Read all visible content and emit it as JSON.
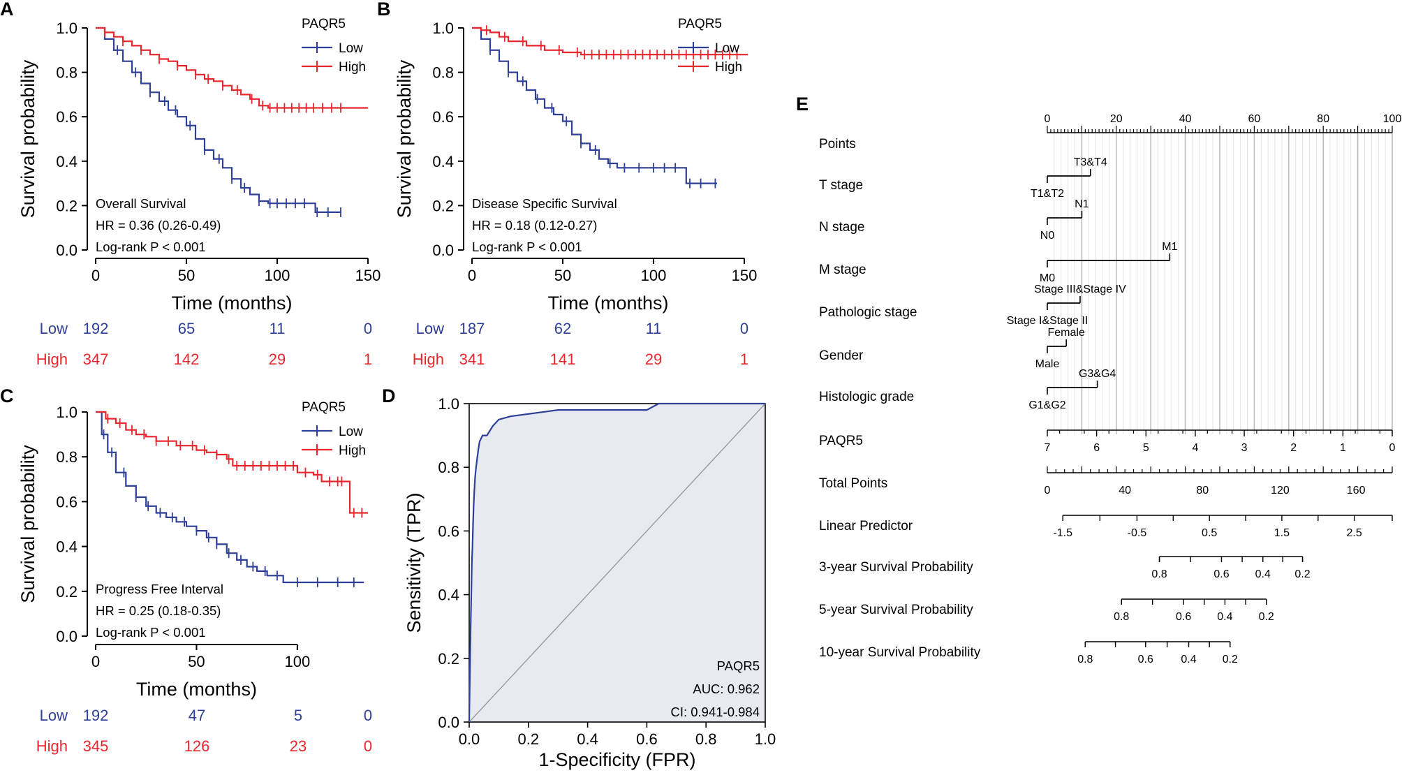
{
  "colors": {
    "low": "#2e3f97",
    "high": "#e8262d",
    "axis": "#000000",
    "roc": "#2e3f97",
    "fill": "#e8eaf2",
    "grid": "#c8c8c8"
  },
  "chart_data": [
    {
      "panel": "A",
      "type": "line",
      "subtype": "kaplan-meier",
      "legend_title": "PAQR5",
      "xlabel": "Time (months)",
      "ylabel": "Survival probability",
      "xlim": [
        0,
        150
      ],
      "ylim": [
        0,
        1
      ],
      "xticks": [
        "0",
        "50",
        "100",
        "150"
      ],
      "yticks": [
        "0.0",
        "0.2",
        "0.4",
        "0.6",
        "0.8",
        "1.0"
      ],
      "annotation": [
        "Overall Survival",
        "HR = 0.36 (0.26-0.49)",
        "Log-rank P < 0.001"
      ],
      "series": [
        {
          "name": "Low",
          "color": "low",
          "x": [
            0,
            5,
            10,
            15,
            20,
            25,
            30,
            35,
            40,
            45,
            50,
            55,
            60,
            65,
            70,
            75,
            80,
            85,
            90,
            95,
            100,
            105,
            110,
            115,
            118,
            121,
            125,
            135
          ],
          "y": [
            1.0,
            0.95,
            0.9,
            0.85,
            0.8,
            0.75,
            0.71,
            0.67,
            0.63,
            0.6,
            0.56,
            0.5,
            0.45,
            0.41,
            0.37,
            0.32,
            0.28,
            0.25,
            0.22,
            0.21,
            0.21,
            0.21,
            0.21,
            0.21,
            0.21,
            0.17,
            0.17,
            0.17
          ],
          "censor": [
            12,
            22,
            30,
            38,
            44,
            52,
            60,
            68,
            75,
            82,
            90,
            96,
            100,
            105,
            110,
            115,
            122,
            128,
            135
          ]
        },
        {
          "name": "High",
          "color": "high",
          "x": [
            0,
            5,
            10,
            15,
            20,
            25,
            30,
            35,
            40,
            45,
            50,
            55,
            60,
            65,
            70,
            75,
            80,
            85,
            90,
            95,
            100,
            110,
            120,
            130,
            140,
            150
          ],
          "y": [
            1.0,
            0.98,
            0.96,
            0.94,
            0.92,
            0.9,
            0.88,
            0.86,
            0.85,
            0.83,
            0.81,
            0.79,
            0.77,
            0.76,
            0.74,
            0.72,
            0.7,
            0.68,
            0.65,
            0.64,
            0.64,
            0.64,
            0.64,
            0.64,
            0.64,
            0.64
          ],
          "censor": [
            5,
            15,
            25,
            35,
            45,
            55,
            62,
            70,
            78,
            86,
            92,
            96,
            100,
            104,
            108,
            112,
            116,
            120,
            125,
            130,
            135
          ]
        }
      ],
      "risk_table": {
        "rows": [
          {
            "name": "Low",
            "color": "low",
            "values": [
              "192",
              "65",
              "11",
              "0"
            ]
          },
          {
            "name": "High",
            "color": "high",
            "values": [
              "347",
              "142",
              "29",
              "1"
            ]
          }
        ]
      }
    },
    {
      "panel": "B",
      "type": "line",
      "subtype": "kaplan-meier",
      "legend_title": "PAQR5",
      "xlabel": "Time (months)",
      "ylabel": "Survival probability",
      "xlim": [
        0,
        150
      ],
      "ylim": [
        0,
        1
      ],
      "xticks": [
        "0",
        "50",
        "100",
        "150"
      ],
      "yticks": [
        "0.0",
        "0.2",
        "0.4",
        "0.6",
        "0.8",
        "1.0"
      ],
      "annotation": [
        "Disease Specific Survival",
        "HR = 0.18 (0.12-0.27)",
        "Log-rank P < 0.001"
      ],
      "series": [
        {
          "name": "Low",
          "color": "low",
          "x": [
            0,
            5,
            10,
            15,
            20,
            25,
            30,
            35,
            40,
            45,
            50,
            55,
            60,
            65,
            70,
            75,
            80,
            90,
            100,
            110,
            115,
            118,
            125,
            135
          ],
          "y": [
            1.0,
            0.95,
            0.9,
            0.85,
            0.8,
            0.76,
            0.72,
            0.68,
            0.64,
            0.61,
            0.58,
            0.52,
            0.48,
            0.45,
            0.41,
            0.39,
            0.37,
            0.37,
            0.37,
            0.37,
            0.37,
            0.3,
            0.3,
            0.3
          ],
          "censor": [
            10,
            20,
            28,
            36,
            44,
            52,
            60,
            68,
            76,
            84,
            92,
            100,
            106,
            112,
            120,
            126,
            134
          ]
        },
        {
          "name": "High",
          "color": "high",
          "x": [
            0,
            5,
            10,
            15,
            20,
            30,
            40,
            50,
            60,
            70,
            80,
            100,
            120,
            140,
            152
          ],
          "y": [
            1.0,
            0.99,
            0.98,
            0.96,
            0.94,
            0.92,
            0.9,
            0.89,
            0.88,
            0.88,
            0.88,
            0.88,
            0.88,
            0.88,
            0.88
          ],
          "censor": [
            8,
            18,
            28,
            38,
            48,
            58,
            62,
            66,
            70,
            74,
            78,
            82,
            86,
            90,
            94,
            98,
            102,
            106,
            110,
            114,
            118,
            122,
            126,
            130,
            134,
            138,
            142,
            146
          ]
        }
      ],
      "risk_table": {
        "rows": [
          {
            "name": "Low",
            "color": "low",
            "values": [
              "187",
              "62",
              "11",
              "0"
            ]
          },
          {
            "name": "High",
            "color": "high",
            "values": [
              "341",
              "141",
              "29",
              "1"
            ]
          }
        ]
      }
    },
    {
      "panel": "C",
      "type": "line",
      "subtype": "kaplan-meier",
      "legend_title": "PAQR5",
      "xlabel": "Time (months)",
      "ylabel": "Survival probability",
      "xlim": [
        0,
        135
      ],
      "ylim": [
        0,
        1
      ],
      "xticks": [
        "0",
        "50",
        "100"
      ],
      "yticks": [
        "0.0",
        "0.2",
        "0.4",
        "0.6",
        "0.8",
        "1.0"
      ],
      "annotation": [
        "Progress Free Interval",
        "HR = 0.25 (0.18-0.35)",
        "Log-rank P < 0.001"
      ],
      "series": [
        {
          "name": "Low",
          "color": "low",
          "x": [
            0,
            3,
            6,
            10,
            15,
            20,
            25,
            30,
            35,
            40,
            45,
            50,
            55,
            60,
            65,
            70,
            75,
            80,
            85,
            90,
            93,
            100,
            110,
            120,
            133
          ],
          "y": [
            1.0,
            0.9,
            0.82,
            0.73,
            0.67,
            0.62,
            0.58,
            0.55,
            0.53,
            0.51,
            0.49,
            0.47,
            0.44,
            0.41,
            0.37,
            0.34,
            0.31,
            0.29,
            0.27,
            0.27,
            0.24,
            0.24,
            0.24,
            0.24,
            0.24
          ],
          "censor": [
            4,
            8,
            14,
            20,
            26,
            32,
            38,
            44,
            50,
            56,
            60,
            66,
            72,
            78,
            84,
            90,
            100,
            110,
            120,
            128
          ]
        },
        {
          "name": "High",
          "color": "high",
          "x": [
            0,
            5,
            10,
            15,
            20,
            25,
            30,
            40,
            50,
            55,
            60,
            65,
            68,
            75,
            85,
            95,
            100,
            108,
            112,
            120,
            124,
            126,
            130,
            135
          ],
          "y": [
            1.0,
            0.97,
            0.95,
            0.92,
            0.9,
            0.89,
            0.87,
            0.85,
            0.83,
            0.82,
            0.81,
            0.79,
            0.76,
            0.76,
            0.76,
            0.76,
            0.73,
            0.72,
            0.69,
            0.69,
            0.69,
            0.55,
            0.55,
            0.55
          ],
          "censor": [
            6,
            12,
            18,
            24,
            30,
            36,
            42,
            48,
            54,
            60,
            66,
            70,
            74,
            78,
            82,
            86,
            90,
            94,
            98,
            104,
            110,
            116,
            120,
            122,
            128,
            132
          ]
        }
      ],
      "risk_table": {
        "rows": [
          {
            "name": "Low",
            "color": "low",
            "values": [
              "192",
              "47",
              "5",
              "0"
            ]
          },
          {
            "name": "High",
            "color": "high",
            "values": [
              "345",
              "126",
              "23",
              "0"
            ]
          }
        ]
      }
    },
    {
      "panel": "D",
      "type": "line",
      "subtype": "roc",
      "xlabel": "1-Specificity (FPR)",
      "ylabel": "Sensitivity (TPR)",
      "xlim": [
        0,
        1
      ],
      "ylim": [
        0,
        1
      ],
      "xticks": [
        "0.0",
        "0.2",
        "0.4",
        "0.6",
        "0.8",
        "1.0"
      ],
      "yticks": [
        "0.0",
        "0.2",
        "0.4",
        "0.6",
        "0.8",
        "1.0"
      ],
      "annotation": [
        "PAQR5",
        "AUC: 0.962",
        "CI: 0.941-0.984"
      ],
      "series": [
        {
          "name": "PAQR5",
          "x": [
            0,
            0.003,
            0.005,
            0.007,
            0.009,
            0.011,
            0.013,
            0.015,
            0.017,
            0.02,
            0.023,
            0.026,
            0.03,
            0.035,
            0.045,
            0.06,
            0.08,
            0.1,
            0.14,
            0.22,
            0.3,
            0.6,
            0.64,
            1.0
          ],
          "y": [
            0,
            0.2,
            0.3,
            0.4,
            0.5,
            0.55,
            0.62,
            0.68,
            0.72,
            0.77,
            0.8,
            0.82,
            0.85,
            0.88,
            0.9,
            0.9,
            0.93,
            0.95,
            0.96,
            0.97,
            0.98,
            0.98,
            1.0,
            1.0
          ]
        }
      ]
    },
    {
      "panel": "E",
      "type": "other",
      "subtype": "nomogram",
      "rows": [
        {
          "label": "Points",
          "kind": "points",
          "ticks": [
            "0",
            "20",
            "40",
            "60",
            "80",
            "100"
          ]
        },
        {
          "label": "T stage",
          "kind": "cat",
          "levels": [
            {
              "text": "T1&T2",
              "points": 0
            },
            {
              "text": "T3&T4",
              "points": 12.5
            }
          ]
        },
        {
          "label": "N stage",
          "kind": "cat",
          "levels": [
            {
              "text": "N0",
              "points": 0
            },
            {
              "text": "N1",
              "points": 10
            }
          ]
        },
        {
          "label": "M stage",
          "kind": "cat",
          "levels": [
            {
              "text": "M0",
              "points": 0
            },
            {
              "text": "M1",
              "points": 35.5
            }
          ]
        },
        {
          "label": "Pathologic stage",
          "kind": "cat",
          "levels": [
            {
              "text": "Stage I&Stage II",
              "points": 0
            },
            {
              "text": "Stage III&Stage IV",
              "points": 9.5
            }
          ]
        },
        {
          "label": "Gender",
          "kind": "cat",
          "levels": [
            {
              "text": "Male",
              "points": 0
            },
            {
              "text": "Female",
              "points": 5.5
            }
          ]
        },
        {
          "label": "Histologic grade",
          "kind": "cat",
          "levels": [
            {
              "text": "G1&G2",
              "points": 0
            },
            {
              "text": "G3&G4",
              "points": 14.5
            }
          ]
        },
        {
          "label": "PAQR5",
          "kind": "scale",
          "ticks": [
            {
              "text": "7",
              "points": 0
            },
            {
              "text": "6",
              "points": 14.3
            },
            {
              "text": "5",
              "points": 28.6
            },
            {
              "text": "4",
              "points": 42.9
            },
            {
              "text": "3",
              "points": 57.1
            },
            {
              "text": "2",
              "points": 71.4
            },
            {
              "text": "1",
              "points": 85.7
            },
            {
              "text": "0",
              "points": 100
            }
          ]
        },
        {
          "label": "Total Points",
          "kind": "axis",
          "range": [
            0,
            100
          ],
          "ticks": [
            {
              "text": "0",
              "points": 0
            },
            {
              "text": "40",
              "points": 22.5
            },
            {
              "text": "80",
              "points": 45
            },
            {
              "text": "120",
              "points": 67.5
            },
            {
              "text": "160",
              "points": 89.5
            }
          ]
        },
        {
          "label": "Linear Predictor",
          "kind": "axis",
          "range": [
            4.5,
            100
          ],
          "ticks": [
            {
              "text": "-1.5",
              "points": 4.5
            },
            {
              "text": "-0.5",
              "points": 26
            },
            {
              "text": "0.5",
              "points": 47
            },
            {
              "text": "1.5",
              "points": 68
            },
            {
              "text": "2.5",
              "points": 89
            }
          ]
        },
        {
          "label": "3-year Survival Probability",
          "kind": "axis",
          "range": [
            32.5,
            74
          ],
          "ticks": [
            {
              "text": "0.8",
              "points": 32.5
            },
            {
              "text": "0.6",
              "points": 50.5
            },
            {
              "text": "0.4",
              "points": 62.5
            },
            {
              "text": "0.2",
              "points": 74
            }
          ]
        },
        {
          "label": "5-year Survival Probability",
          "kind": "axis",
          "range": [
            21.5,
            63.5
          ],
          "ticks": [
            {
              "text": "0.8",
              "points": 21.5
            },
            {
              "text": "0.6",
              "points": 39.5
            },
            {
              "text": "0.4",
              "points": 51.5
            },
            {
              "text": "0.2",
              "points": 63.5
            }
          ]
        },
        {
          "label": "10-year Survival Probability",
          "kind": "axis",
          "range": [
            11,
            53
          ],
          "ticks": [
            {
              "text": "0.8",
              "points": 11
            },
            {
              "text": "0.6",
              "points": 28.5
            },
            {
              "text": "0.4",
              "points": 41
            },
            {
              "text": "0.2",
              "points": 53
            }
          ]
        }
      ]
    }
  ]
}
